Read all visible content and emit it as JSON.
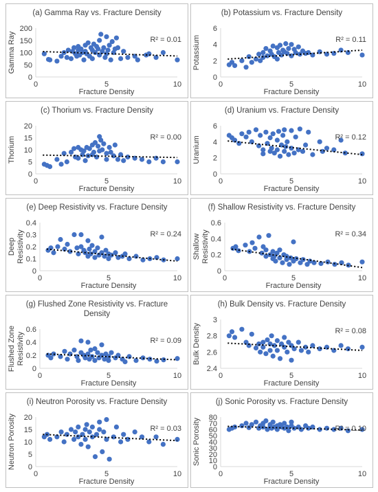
{
  "chart_data": [
    {
      "type": "scatter",
      "title": "(a) Gamma Ray vs. Fracture Density",
      "xlabel": "Fracture Density",
      "ylabel": "Gamma Ray",
      "xlim": [
        0,
        10
      ],
      "ylim": [
        0,
        200
      ],
      "xticks": [
        0,
        5,
        10
      ],
      "yticks": [
        0,
        50,
        100,
        150,
        200
      ],
      "r2_label": "R² = 0.01",
      "trendline": [
        [
          0.5,
          104
        ],
        [
          10,
          86
        ]
      ],
      "x": [
        0.6,
        0.9,
        1.0,
        1.5,
        1.8,
        2.0,
        2.2,
        2.3,
        2.5,
        2.6,
        2.7,
        2.8,
        2.9,
        3.0,
        3.0,
        3.1,
        3.2,
        3.3,
        3.4,
        3.5,
        3.5,
        3.6,
        3.7,
        3.8,
        3.9,
        4.0,
        4.0,
        4.1,
        4.2,
        4.3,
        4.4,
        4.5,
        4.5,
        4.6,
        4.7,
        4.8,
        4.9,
        5.0,
        5.0,
        5.1,
        5.2,
        5.3,
        5.4,
        5.5,
        5.6,
        5.7,
        5.8,
        6.0,
        6.2,
        6.5,
        7.0,
        7.2,
        7.8,
        8.0,
        8.5,
        9.0,
        10.0
      ],
      "y": [
        95,
        72,
        70,
        65,
        85,
        100,
        80,
        110,
        75,
        105,
        120,
        95,
        85,
        110,
        125,
        90,
        115,
        100,
        70,
        130,
        105,
        95,
        140,
        85,
        120,
        110,
        75,
        135,
        100,
        125,
        115,
        150,
        90,
        175,
        105,
        120,
        80,
        165,
        95,
        110,
        130,
        70,
        145,
        100,
        115,
        160,
        120,
        75,
        105,
        80,
        85,
        70,
        90,
        95,
        80,
        100,
        70
      ]
    },
    {
      "type": "scatter",
      "title": "(b) Potassium vs. Fracture Density",
      "xlabel": "Fracture Density",
      "ylabel": "Potassium",
      "xlim": [
        0,
        10
      ],
      "ylim": [
        0,
        6
      ],
      "xticks": [
        0,
        5,
        10
      ],
      "yticks": [
        0,
        2,
        4,
        6
      ],
      "r2_label": "R² = 0.11",
      "trendline": [
        [
          0.5,
          2.2
        ],
        [
          10,
          3.3
        ]
      ],
      "x": [
        0.6,
        0.8,
        1.0,
        1.5,
        1.8,
        2.0,
        2.2,
        2.5,
        2.7,
        2.8,
        3.0,
        3.0,
        3.2,
        3.3,
        3.5,
        3.6,
        3.7,
        3.8,
        4.0,
        4.0,
        4.1,
        4.2,
        4.3,
        4.4,
        4.5,
        4.6,
        4.7,
        4.8,
        5.0,
        5.0,
        5.2,
        5.3,
        5.5,
        5.6,
        5.8,
        6.0,
        6.2,
        6.5,
        7.0,
        7.5,
        8.0,
        8.5,
        9.0,
        10.0
      ],
      "y": [
        1.5,
        1.8,
        1.4,
        2.0,
        1.2,
        2.5,
        1.8,
        2.2,
        2.8,
        2.0,
        3.0,
        2.4,
        3.5,
        2.6,
        3.2,
        2.8,
        3.8,
        2.5,
        3.6,
        2.2,
        3.0,
        3.9,
        2.7,
        3.3,
        3.1,
        4.1,
        2.9,
        3.5,
        4.0,
        2.6,
        3.4,
        3.0,
        3.7,
        2.8,
        3.2,
        2.9,
        3.0,
        2.7,
        3.1,
        2.8,
        2.9,
        3.3,
        3.0,
        2.7
      ]
    },
    {
      "type": "scatter",
      "title": "(c) Thorium vs. Fracture Density",
      "xlabel": "Fracture Density",
      "ylabel": "Thorium",
      "xlim": [
        0,
        10
      ],
      "ylim": [
        0,
        20
      ],
      "xticks": [
        0,
        5,
        10
      ],
      "yticks": [
        0,
        5,
        10,
        15,
        20
      ],
      "r2_label": "R² = 0.00",
      "trendline": [
        [
          0.5,
          7.8
        ],
        [
          10,
          6.8
        ]
      ],
      "x": [
        0.6,
        0.8,
        1.0,
        1.5,
        1.8,
        2.0,
        2.2,
        2.5,
        2.7,
        2.8,
        3.0,
        3.0,
        3.2,
        3.3,
        3.4,
        3.5,
        3.6,
        3.7,
        3.8,
        4.0,
        4.0,
        4.1,
        4.2,
        4.3,
        4.4,
        4.5,
        4.5,
        4.6,
        4.7,
        4.8,
        5.0,
        5.0,
        5.2,
        5.3,
        5.5,
        5.6,
        5.8,
        6.0,
        6.2,
        6.5,
        7.0,
        7.5,
        8.0,
        8.5,
        9.0,
        10.0
      ],
      "y": [
        4.0,
        3.5,
        3.0,
        6.0,
        4.0,
        8.5,
        5.0,
        9.0,
        10.5,
        7.0,
        11.0,
        6.5,
        10.0,
        8.0,
        9.5,
        5.5,
        11.0,
        7.5,
        10.5,
        12.0,
        8.0,
        9.0,
        13.0,
        7.0,
        11.5,
        15.5,
        9.5,
        14.0,
        10.0,
        12.5,
        8.5,
        6.0,
        11.0,
        9.0,
        7.5,
        12.0,
        6.0,
        8.0,
        5.5,
        7.0,
        6.5,
        6.0,
        5.0,
        6.5,
        5.0,
        5.0
      ]
    },
    {
      "type": "scatter",
      "title": "(d) Uranium vs. Fracture Density",
      "xlabel": "Fracture Density",
      "ylabel": "Uranium",
      "xlim": [
        0,
        10
      ],
      "ylim": [
        0,
        6
      ],
      "xticks": [
        0,
        5,
        10
      ],
      "yticks": [
        0,
        2,
        4,
        6
      ],
      "r2_label": "R² = 0.12",
      "trendline": [
        [
          0.5,
          4.1
        ],
        [
          10,
          2.4
        ]
      ],
      "x": [
        0.6,
        0.8,
        1.0,
        1.3,
        1.5,
        1.8,
        2.0,
        2.2,
        2.5,
        2.7,
        2.8,
        3.0,
        3.0,
        3.2,
        3.3,
        3.5,
        3.5,
        3.6,
        3.7,
        3.8,
        4.0,
        4.0,
        4.1,
        4.2,
        4.3,
        4.4,
        4.5,
        4.5,
        4.6,
        4.7,
        4.8,
        5.0,
        5.0,
        5.2,
        5.3,
        5.5,
        5.6,
        5.8,
        6.0,
        6.2,
        6.5,
        7.0,
        7.2,
        7.5,
        8.0,
        8.5,
        8.8,
        10.0
      ],
      "y": [
        4.8,
        4.5,
        4.2,
        3.8,
        5.0,
        4.6,
        5.2,
        4.0,
        5.5,
        3.5,
        4.8,
        3.0,
        2.5,
        5.2,
        3.8,
        2.8,
        4.5,
        3.2,
        5.0,
        2.6,
        4.2,
        3.0,
        5.3,
        2.2,
        3.6,
        4.8,
        2.8,
        5.5,
        3.4,
        4.0,
        2.4,
        3.2,
        5.4,
        2.6,
        4.6,
        3.0,
        5.6,
        2.8,
        3.6,
        5.2,
        2.4,
        4.0,
        2.8,
        3.2,
        3.0,
        4.2,
        2.6,
        2.5
      ]
    },
    {
      "type": "scatter",
      "title": "(e) Deep Resistivity vs. Fracture Density",
      "xlabel": "Fracture Density",
      "ylabel": "Deep Resistivity",
      "xlim": [
        0,
        10
      ],
      "ylim": [
        0,
        0.4
      ],
      "xticks": [
        0,
        5,
        10
      ],
      "yticks": [
        0,
        0.1,
        0.2,
        0.3,
        0.4
      ],
      "r2_label": "R² = 0.24",
      "trendline": [
        [
          0.5,
          0.18
        ],
        [
          10,
          0.08
        ]
      ],
      "x": [
        0.6,
        0.8,
        1.0,
        1.3,
        1.5,
        1.8,
        2.0,
        2.2,
        2.5,
        2.7,
        2.8,
        3.0,
        3.0,
        3.2,
        3.3,
        3.5,
        3.5,
        3.6,
        3.7,
        3.8,
        4.0,
        4.0,
        4.2,
        4.3,
        4.5,
        4.5,
        4.7,
        4.8,
        5.0,
        5.0,
        5.2,
        5.5,
        5.7,
        6.0,
        6.2,
        6.5,
        7.0,
        7.5,
        8.0,
        8.5,
        9.0,
        10.0
      ],
      "y": [
        0.17,
        0.19,
        0.15,
        0.2,
        0.26,
        0.18,
        0.22,
        0.16,
        0.3,
        0.19,
        0.14,
        0.2,
        0.3,
        0.17,
        0.15,
        0.25,
        0.12,
        0.18,
        0.14,
        0.21,
        0.16,
        0.11,
        0.19,
        0.13,
        0.15,
        0.28,
        0.12,
        0.17,
        0.14,
        0.1,
        0.13,
        0.15,
        0.11,
        0.12,
        0.14,
        0.1,
        0.12,
        0.09,
        0.1,
        0.11,
        0.09,
        0.1
      ]
    },
    {
      "type": "scatter",
      "title": "(f) Shallow Resistivity vs. Fracture Density",
      "xlabel": "Fracture Density",
      "ylabel": "Shallow Resistivity",
      "xlim": [
        0,
        10
      ],
      "ylim": [
        0,
        0.6
      ],
      "xticks": [
        0,
        5,
        10
      ],
      "yticks": [
        0,
        0.2,
        0.4,
        0.6
      ],
      "r2_label": "R² = 0.34",
      "trendline": [
        [
          0.5,
          0.27
        ],
        [
          10,
          0.04
        ]
      ],
      "x": [
        0.6,
        0.8,
        1.0,
        1.5,
        1.8,
        2.0,
        2.2,
        2.5,
        2.7,
        2.8,
        3.0,
        3.0,
        3.2,
        3.3,
        3.5,
        3.5,
        3.6,
        3.7,
        3.8,
        4.0,
        4.0,
        4.2,
        4.3,
        4.5,
        4.5,
        4.7,
        4.8,
        5.0,
        5.0,
        5.2,
        5.5,
        5.7,
        6.0,
        6.2,
        6.5,
        7.0,
        7.5,
        8.0,
        8.5,
        9.0,
        10.0
      ],
      "y": [
        0.28,
        0.3,
        0.25,
        0.32,
        0.24,
        0.35,
        0.28,
        0.42,
        0.22,
        0.3,
        0.18,
        0.26,
        0.44,
        0.2,
        0.15,
        0.24,
        0.18,
        0.12,
        0.22,
        0.16,
        0.26,
        0.1,
        0.2,
        0.14,
        0.18,
        0.08,
        0.16,
        0.36,
        0.12,
        0.15,
        0.1,
        0.14,
        0.08,
        0.12,
        0.1,
        0.09,
        0.11,
        0.08,
        0.1,
        0.07,
        0.11
      ]
    },
    {
      "type": "scatter",
      "title": "(g) Flushed Zone Resistivity vs. Fracture Density",
      "xlabel": "Fracture Density",
      "ylabel": "Flushed Zone Resistivity",
      "xlim": [
        0,
        10
      ],
      "ylim": [
        0,
        0.6
      ],
      "xticks": [
        0,
        5,
        10
      ],
      "yticks": [
        0,
        0.2,
        0.4,
        0.6
      ],
      "r2_label": "R² = 0.09",
      "trendline": [
        [
          0.5,
          0.22
        ],
        [
          10,
          0.13
        ]
      ],
      "x": [
        0.6,
        0.8,
        1.0,
        1.5,
        1.8,
        2.0,
        2.2,
        2.5,
        2.7,
        2.8,
        3.0,
        3.0,
        3.2,
        3.3,
        3.5,
        3.5,
        3.6,
        3.7,
        3.8,
        4.0,
        4.0,
        4.2,
        4.3,
        4.5,
        4.5,
        4.7,
        4.8,
        5.0,
        5.0,
        5.2,
        5.5,
        5.7,
        6.0,
        6.2,
        6.5,
        7.0,
        7.5,
        8.0,
        8.5,
        9.0,
        10.0
      ],
      "y": [
        0.2,
        0.16,
        0.22,
        0.18,
        0.26,
        0.14,
        0.22,
        0.28,
        0.18,
        0.12,
        0.24,
        0.42,
        0.2,
        0.16,
        0.4,
        0.22,
        0.14,
        0.28,
        0.18,
        0.3,
        0.12,
        0.24,
        0.16,
        0.2,
        0.36,
        0.14,
        0.22,
        0.18,
        0.12,
        0.24,
        0.16,
        0.2,
        0.14,
        0.1,
        0.18,
        0.12,
        0.16,
        0.14,
        0.11,
        0.13,
        0.15
      ]
    },
    {
      "type": "scatter",
      "title": "(h) Bulk Density vs. Fracture Density",
      "xlabel": "Fracture Density",
      "ylabel": "Bulk Density",
      "xlim": [
        0,
        10
      ],
      "ylim": [
        2.4,
        3.0
      ],
      "xticks": [
        0,
        5,
        10
      ],
      "yticks": [
        2.4,
        2.6,
        2.8,
        3.0
      ],
      "r2_label": "R² = 0.08",
      "trendline": [
        [
          0.5,
          2.71
        ],
        [
          10,
          2.62
        ]
      ],
      "x": [
        0.6,
        0.8,
        1.0,
        1.5,
        1.8,
        2.0,
        2.2,
        2.5,
        2.7,
        2.8,
        3.0,
        3.0,
        3.2,
        3.3,
        3.5,
        3.5,
        3.6,
        3.7,
        3.8,
        4.0,
        4.0,
        4.2,
        4.3,
        4.5,
        4.5,
        4.7,
        4.8,
        5.0,
        5.0,
        5.2,
        5.5,
        5.7,
        6.0,
        6.2,
        6.5,
        7.0,
        7.5,
        8.0,
        8.5,
        9.0,
        10.0
      ],
      "y": [
        2.8,
        2.85,
        2.78,
        2.88,
        2.72,
        2.68,
        2.82,
        2.65,
        2.7,
        2.6,
        2.72,
        2.66,
        2.58,
        2.75,
        2.62,
        2.7,
        2.8,
        2.55,
        2.68,
        2.74,
        2.62,
        2.52,
        2.7,
        2.66,
        2.78,
        2.6,
        2.72,
        2.5,
        2.68,
        2.64,
        2.72,
        2.62,
        2.66,
        2.6,
        2.68,
        2.64,
        2.66,
        2.62,
        2.68,
        2.64,
        2.66
      ]
    },
    {
      "type": "scatter",
      "title": "(i) Neutron Porosity vs. Fracture Density",
      "xlabel": "Fracture Density",
      "ylabel": "Neutron Porosity",
      "xlim": [
        0,
        10
      ],
      "ylim": [
        0,
        20
      ],
      "xticks": [
        0,
        5,
        10
      ],
      "yticks": [
        0,
        5,
        10,
        15,
        20
      ],
      "r2_label": "R² = 0.03",
      "trendline": [
        [
          0.5,
          13.0
        ],
        [
          10,
          10.5
        ]
      ],
      "x": [
        0.6,
        0.8,
        1.0,
        1.5,
        1.8,
        2.0,
        2.2,
        2.5,
        2.7,
        2.8,
        3.0,
        3.0,
        3.2,
        3.3,
        3.5,
        3.5,
        3.6,
        3.7,
        3.8,
        4.0,
        4.0,
        4.2,
        4.3,
        4.5,
        4.5,
        4.7,
        4.8,
        5.0,
        5.0,
        5.2,
        5.5,
        5.7,
        6.0,
        6.2,
        6.5,
        7.0,
        7.5,
        8.0,
        8.5,
        9.0,
        10.0
      ],
      "y": [
        12,
        13,
        11,
        12,
        14,
        10,
        13,
        15,
        11,
        14,
        12,
        16,
        9,
        13,
        15,
        11,
        17,
        8,
        14,
        12,
        16,
        4,
        13,
        15,
        18,
        6,
        14,
        11,
        19,
        3,
        12,
        16,
        10,
        13,
        11,
        14,
        12,
        10,
        12,
        9,
        11
      ]
    },
    {
      "type": "scatter",
      "title": "(j) Sonic Porosity vs. Fracture Density",
      "xlabel": "Fracture Density",
      "ylabel": "Sonic Porosity",
      "xlim": [
        0,
        10
      ],
      "ylim": [
        0,
        80
      ],
      "xticks": [
        0,
        5,
        10
      ],
      "yticks": [
        0,
        10,
        20,
        30,
        40,
        50,
        60,
        70,
        80
      ],
      "r2_label": "R² = 0.10",
      "trendline": [
        [
          0.5,
          65
        ],
        [
          10,
          59
        ]
      ],
      "x": [
        0.6,
        0.8,
        1.0,
        1.5,
        1.8,
        2.0,
        2.2,
        2.5,
        2.7,
        2.8,
        3.0,
        3.0,
        3.2,
        3.3,
        3.5,
        3.5,
        3.6,
        3.7,
        3.8,
        4.0,
        4.0,
        4.2,
        4.3,
        4.5,
        4.5,
        4.7,
        4.8,
        5.0,
        5.0,
        5.2,
        5.5,
        5.7,
        6.0,
        6.2,
        6.5,
        7.0,
        7.5,
        8.0,
        8.5,
        9.0,
        10.0
      ],
      "y": [
        60,
        62,
        64,
        66,
        70,
        63,
        68,
        72,
        62,
        66,
        70,
        64,
        74,
        60,
        66,
        68,
        62,
        72,
        64,
        66,
        60,
        68,
        64,
        62,
        70,
        64,
        58,
        66,
        72,
        62,
        64,
        60,
        66,
        62,
        64,
        60,
        62,
        60,
        62,
        58,
        60
      ]
    }
  ]
}
